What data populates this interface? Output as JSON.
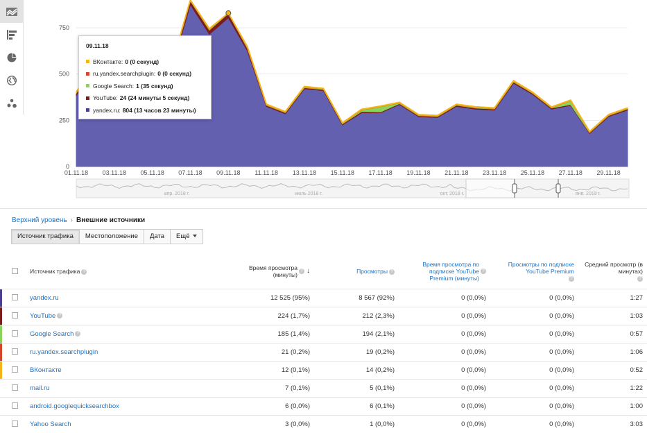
{
  "sidebar": {
    "icons": [
      "line-chart-icon",
      "bar-chart-icon",
      "pie-chart-icon",
      "globe-icon",
      "bubble-chart-icon"
    ]
  },
  "chart_data": {
    "type": "area",
    "x": [
      "01.11.18",
      "02.11.18",
      "03.11.18",
      "04.11.18",
      "05.11.18",
      "06.11.18",
      "07.11.18",
      "08.11.18",
      "09.11.18",
      "10.11.18",
      "11.11.18",
      "12.11.18",
      "13.11.18",
      "14.11.18",
      "15.11.18",
      "16.11.18",
      "17.11.18",
      "18.11.18",
      "19.11.18",
      "20.11.18",
      "21.11.18",
      "22.11.18",
      "23.11.18",
      "24.11.18",
      "25.11.18",
      "26.11.18",
      "27.11.18",
      "28.11.18",
      "29.11.18",
      "30.11.18"
    ],
    "x_tick_labels": [
      "01.11.18",
      "03.11.18",
      "05.11.18",
      "07.11.18",
      "09.11.18",
      "11.11.18",
      "13.11.18",
      "15.11.18",
      "17.11.18",
      "19.11.18",
      "21.11.18",
      "23.11.18",
      "25.11.18",
      "27.11.18",
      "29.11.18"
    ],
    "y_ticks": [
      0,
      250,
      500,
      750
    ],
    "ylim": [
      0,
      900
    ],
    "series": [
      {
        "name": "yandex.ru",
        "color": "#6460b0",
        "values": [
          385,
          545,
          530,
          465,
          430,
          520,
          875,
          715,
          804,
          625,
          325,
          285,
          420,
          410,
          225,
          290,
          290,
          335,
          270,
          265,
          325,
          310,
          305,
          450,
          390,
          310,
          330,
          178,
          270,
          305
        ]
      },
      {
        "name": "YouTube",
        "color": "#7a1d1d",
        "values": [
          10,
          12,
          14,
          10,
          10,
          14,
          20,
          22,
          24,
          14,
          6,
          6,
          6,
          6,
          5,
          7,
          5,
          5,
          5,
          5,
          6,
          6,
          6,
          7,
          6,
          6,
          5,
          5,
          5,
          6
        ]
      },
      {
        "name": "Google Search",
        "color": "#8bd45a",
        "values": [
          2,
          3,
          2,
          2,
          2,
          3,
          1,
          3,
          1,
          3,
          2,
          2,
          3,
          2,
          2,
          8,
          28,
          3,
          2,
          2,
          2,
          3,
          2,
          3,
          2,
          2,
          20,
          2,
          2,
          2
        ]
      },
      {
        "name": "ru.yandex.searchplugin",
        "color": "#d5452b",
        "values": [
          2,
          2,
          2,
          2,
          1,
          2,
          1,
          2,
          0,
          2,
          1,
          1,
          1,
          1,
          1,
          1,
          1,
          1,
          1,
          1,
          1,
          1,
          1,
          1,
          1,
          1,
          1,
          1,
          1,
          1
        ]
      },
      {
        "name": "ВКонтакте",
        "color": "#f4b41a",
        "values": [
          3,
          3,
          3,
          3,
          3,
          3,
          3,
          3,
          0,
          3,
          3,
          3,
          3,
          3,
          3,
          3,
          3,
          3,
          3,
          3,
          3,
          3,
          3,
          3,
          3,
          3,
          3,
          3,
          3,
          3
        ]
      }
    ],
    "timeline_labels": [
      "апр. 2018 г.",
      "июль 2018 г.",
      "окт. 2018 г.",
      "янв. 2019 г."
    ]
  },
  "tooltip": {
    "date": "09.11.18",
    "rows": [
      {
        "label": "ВКонтакте:",
        "value": "0 (0 секунд)",
        "color": "#f4b41a"
      },
      {
        "label": "ru.yandex.searchplugin:",
        "value": "0 (0 секунд)",
        "color": "#d5452b"
      },
      {
        "label": "Google Search:",
        "value": "1 (35 секунд)",
        "color": "#8bd45a"
      },
      {
        "label": "YouTube:",
        "value": "24 (24 минуты 5 секунд)",
        "color": "#7a1d1d"
      },
      {
        "label": "yandex.ru:",
        "value": "804 (13 часов 23 минуты)",
        "color": "#4a3e8f"
      }
    ]
  },
  "breadcrumb": {
    "parent": "Верхний уровень",
    "separator": "›",
    "current": "Внешние источники"
  },
  "tabs": [
    "Источник трафика",
    "Местоположение",
    "Дата",
    "Ещё"
  ],
  "table": {
    "headers": {
      "source": "Источник трафика",
      "watch_time": "Время просмотра (минуты)",
      "views": "Просмотры",
      "premium_watch_time": "Время просмотра по подписке YouTube Premium (минуты)",
      "premium_views": "Просмотры по подписке YouTube Premium",
      "avg_view": "Средний просмотр (в минутах)"
    },
    "rows": [
      {
        "source": "yandex.ru",
        "color": "#4a3e8f",
        "watch_time": "12 525 (95%)",
        "views": "8 567 (92%)",
        "premium_watch_time": "0 (0,0%)",
        "premium_views": "0 (0,0%)",
        "avg_view": "1:27"
      },
      {
        "source": "YouTube",
        "color": "#7a1d1d",
        "help": true,
        "watch_time": "224 (1,7%)",
        "views": "212 (2,3%)",
        "premium_watch_time": "0 (0,0%)",
        "premium_views": "0 (0,0%)",
        "avg_view": "1:03"
      },
      {
        "source": "Google Search",
        "color": "#8bd45a",
        "help": true,
        "watch_time": "185 (1,4%)",
        "views": "194 (2,1%)",
        "premium_watch_time": "0 (0,0%)",
        "premium_views": "0 (0,0%)",
        "avg_view": "0:57"
      },
      {
        "source": "ru.yandex.searchplugin",
        "color": "#d5452b",
        "watch_time": "21 (0,2%)",
        "views": "19 (0,2%)",
        "premium_watch_time": "0 (0,0%)",
        "premium_views": "0 (0,0%)",
        "avg_view": "1:06"
      },
      {
        "source": "ВКонтакте",
        "color": "#f4b41a",
        "watch_time": "12 (0,1%)",
        "views": "14 (0,2%)",
        "premium_watch_time": "0 (0,0%)",
        "premium_views": "0 (0,0%)",
        "avg_view": "0:52"
      },
      {
        "source": "mail.ru",
        "color": "",
        "watch_time": "7 (0,1%)",
        "views": "5 (0,1%)",
        "premium_watch_time": "0 (0,0%)",
        "premium_views": "0 (0,0%)",
        "avg_view": "1:22"
      },
      {
        "source": "android.googlequicksearchbox",
        "color": "",
        "watch_time": "6 (0,0%)",
        "views": "6 (0,1%)",
        "premium_watch_time": "0 (0,0%)",
        "premium_views": "0 (0,0%)",
        "avg_view": "1:00"
      },
      {
        "source": "Yahoo Search",
        "color": "",
        "watch_time": "3 (0,0%)",
        "views": "1 (0,0%)",
        "premium_watch_time": "0 (0,0%)",
        "premium_views": "0 (0,0%)",
        "avg_view": "3:03"
      }
    ]
  }
}
